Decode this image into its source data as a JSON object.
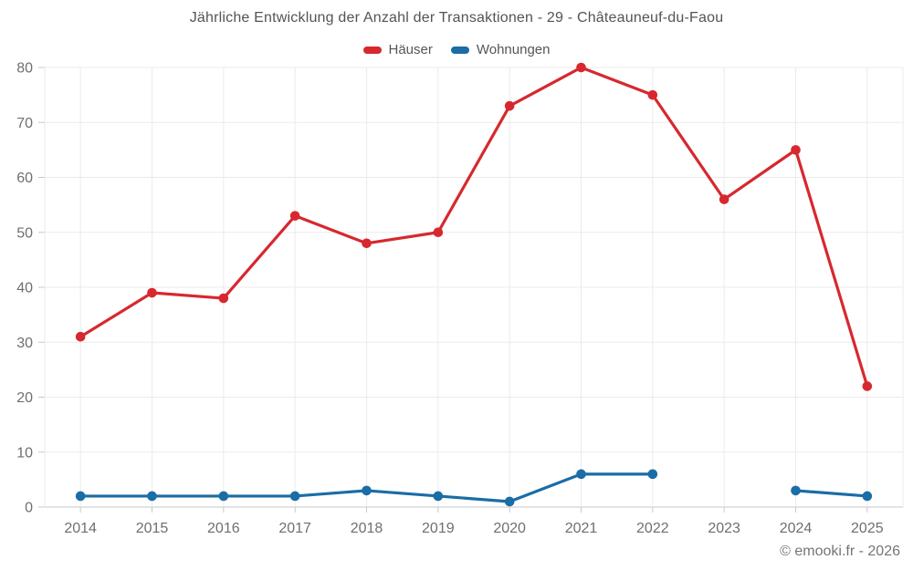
{
  "chart_data": {
    "type": "line",
    "title": "Jährliche Entwicklung der Anzahl der Transaktionen - 29 - Châteauneuf-du-Faou",
    "categories": [
      "2014",
      "2015",
      "2016",
      "2017",
      "2018",
      "2019",
      "2020",
      "2021",
      "2022",
      "2023",
      "2024",
      "2025"
    ],
    "series": [
      {
        "name": "Häuser",
        "color": "#d7282f",
        "values": [
          31,
          39,
          38,
          53,
          48,
          50,
          73,
          80,
          75,
          56,
          65,
          22
        ]
      },
      {
        "name": "Wohnungen",
        "color": "#1a6da6",
        "values": [
          2,
          2,
          2,
          2,
          3,
          2,
          1,
          6,
          6,
          null,
          3,
          2
        ]
      }
    ],
    "xlabel": "",
    "ylabel": "",
    "ylim": [
      0,
      80
    ],
    "yticks": [
      0,
      10,
      20,
      30,
      40,
      50,
      60,
      70,
      80
    ],
    "grid": true,
    "legend_position": "top"
  },
  "footer": {
    "copyright": "© emooki.fr - 2026"
  },
  "colors": {
    "grid": "#ebebeb",
    "axis": "#c9c9c9",
    "tick_text": "#6f6f6f",
    "title_text": "#545454"
  }
}
